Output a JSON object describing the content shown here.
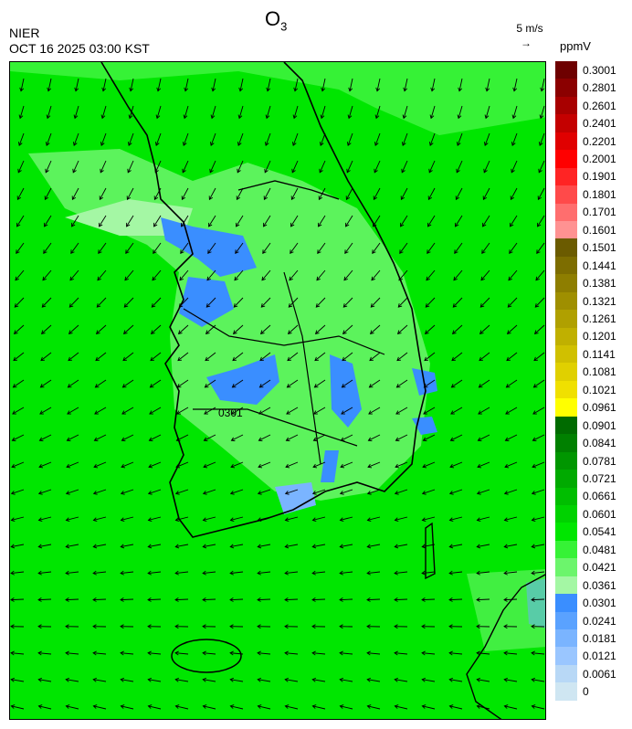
{
  "title": {
    "main": "O",
    "sub": "3"
  },
  "org": "NIER",
  "datetime": "OCT 16 2025 03:00 KST",
  "reference_wind": {
    "label": "5 m/s",
    "arrow": "→"
  },
  "unit": "ppmV",
  "contour_label": "0301",
  "colorbar": {
    "labels": [
      "0.3001",
      "0.2801",
      "0.2601",
      "0.2401",
      "0.2201",
      "0.2001",
      "0.1901",
      "0.1801",
      "0.1701",
      "0.1601",
      "0.1501",
      "0.1441",
      "0.1381",
      "0.1321",
      "0.1261",
      "0.1201",
      "0.1141",
      "0.1081",
      "0.1021",
      "0.0961",
      "0.0901",
      "0.0841",
      "0.0781",
      "0.0721",
      "0.0661",
      "0.0601",
      "0.0541",
      "0.0481",
      "0.0421",
      "0.0361",
      "0.0301",
      "0.0241",
      "0.0181",
      "0.0121",
      "0.0061",
      "0"
    ],
    "colors": [
      "#6e0000",
      "#8b0000",
      "#a80000",
      "#c40000",
      "#e00000",
      "#ff0000",
      "#ff2424",
      "#ff4a4a",
      "#ff6e6e",
      "#ff9292",
      "#6b5b00",
      "#7d6d00",
      "#8e7e00",
      "#9f8f00",
      "#b0a000",
      "#c0b000",
      "#d0c000",
      "#e0d000",
      "#f0e000",
      "#ffff00",
      "#006b00",
      "#008000",
      "#009600",
      "#00aa00",
      "#00be00",
      "#00d200",
      "#00e600",
      "#36f236",
      "#6cf56c",
      "#a4f7a4",
      "#3a8eff",
      "#5aa2ff",
      "#7ab4ff",
      "#9ac6ff",
      "#b8d8f6",
      "#cfe6f2"
    ]
  }
}
